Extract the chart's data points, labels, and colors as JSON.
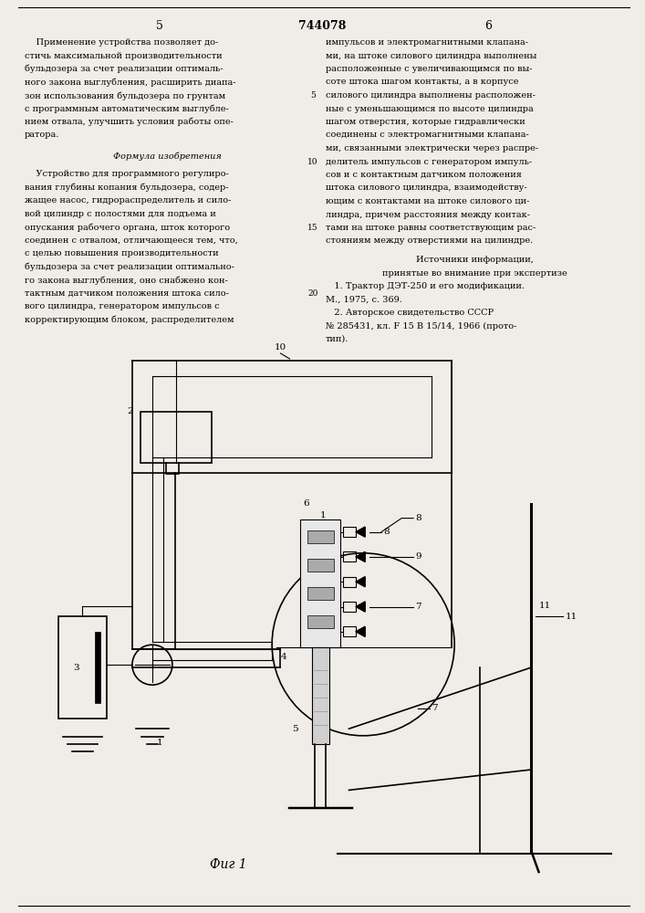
{
  "page_width": 7.07,
  "page_height": 10.0,
  "background_color": "#f0ede8",
  "header_number": "744078",
  "left_col_number": "5",
  "right_col_number": "6",
  "left_col_text": [
    "    Применение устройства позволяет до-",
    "стичь максимальной производительности",
    "бульдозера за счет реализации оптималь-",
    "ного закона выглубления, расширить диапа-",
    "зон использования бульдозера по грунтам",
    "с программным автоматическим выглубле-",
    "нием отвала, улучшить условия работы опе-",
    "ратора."
  ],
  "formula_header": "Формула изобретения",
  "formula_text": [
    "    Устройство для программного регулиро-",
    "вания глубины копания бульдозера, содер-",
    "жащее насос, гидрораспределитель и сило-",
    "вой цилиндр с полостями для подъема и",
    "опускания рабочего органа, шток которого",
    "соединен с отвалом, отличающееся тем, что,",
    "с целью повышения производительности",
    "бульдозера за счет реализации оптимально-",
    "го закона выглубления, оно снабжено кон-",
    "тактным датчиком положения штока сило-",
    "вого цилиндра, генератором импульсов с",
    "корректирующим блоком, распределителем"
  ],
  "right_col_text": [
    "импульсов и электромагнитными клапана-",
    "ми, на штоке силового цилиндра выполнены",
    "расположенные с увеличивающимся по вы-",
    "соте штока шагом контакты, а в корпусе",
    "силового цилиндра выполнены расположен-",
    "ные с уменьшающимся по высоте цилиндра",
    "шагом отверстия, которые гидравлически",
    "соединены с электромагнитными клапана-",
    "ми, связанными электрически через распре-",
    "делитель импульсов с генератором импуль-",
    "сов и с контактным датчиком положения",
    "штока силового цилиндра, взаимодейству-",
    "ющим с контактами на штоке силового ци-",
    "линдра, причем расстояния между контак-",
    "тами на штоке равны соответствующим рас-",
    "стояниям между отверстиями на цилиндре."
  ],
  "sources_header": "Источники информации,",
  "sources_sub": "принятые во внимание при экспертизе",
  "sources": [
    "   1. Трактор ДЭТ-250 и его модификации.",
    "М., 1975, с. 369.",
    "   2. Авторское свидетельство СССР",
    "№ 285431, кл. F 15 В 15/14, 1966 (прото-",
    "тип)."
  ],
  "fig_caption": "Фиг 1"
}
